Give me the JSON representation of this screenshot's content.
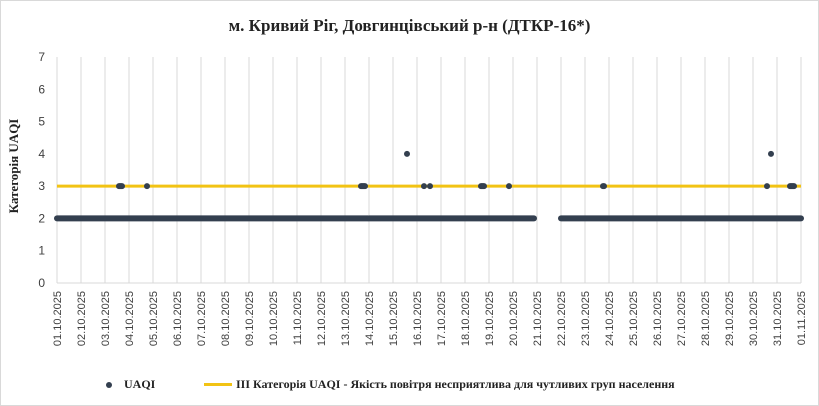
{
  "chart_data": {
    "type": "scatter",
    "title": "м. Кривий Ріг, Довгинцівський р-н (ДТКР-16*)",
    "ylabel": "Категорія UAQI",
    "xlabel": "",
    "ylim": [
      0,
      7
    ],
    "yticks": [
      "0",
      "1",
      "2",
      "3",
      "4",
      "5",
      "6",
      "7"
    ],
    "x_tick_labels": [
      "01.10.2025",
      "02.10.2025",
      "03.10.2025",
      "04.10.2025",
      "05.10.2025",
      "06.10.2025",
      "07.10.2025",
      "08.10.2025",
      "09.10.2025",
      "10.10.2025",
      "11.10.2025",
      "12.10.2025",
      "13.10.2025",
      "14.10.2025",
      "15.10.2025",
      "16.10.2025",
      "17.10.2025",
      "18.10.2025",
      "19.10.2025",
      "20.10.2025",
      "21.10.2025",
      "22.10.2025",
      "23.10.2025",
      "24.10.2025",
      "25.10.2025",
      "26.10.2025",
      "27.10.2025",
      "28.10.2025",
      "29.10.2025",
      "30.10.2025",
      "31.10.2025",
      "01.11.2025"
    ],
    "grid": "vertical",
    "legend_position": "bottom",
    "colors": {
      "uaqi": "#333f4f",
      "threshold": "#f2c314",
      "grid": "#d9d9d9"
    },
    "series": [
      {
        "name": "UAQI",
        "baseline_value": 2,
        "baseline_segments": [
          [
            "01.10.2025 00:00",
            "13.10.2025 23:00"
          ],
          [
            "14.10.2025 00:00",
            "20.10.2025 21:00"
          ],
          [
            "22.10.2025 00:00",
            "01.11.2025 00:00"
          ]
        ],
        "points": [
          {
            "x": "03.10.2025 14:00",
            "y": 3
          },
          {
            "x": "03.10.2025 15:00",
            "y": 3
          },
          {
            "x": "03.10.2025 16:00",
            "y": 3
          },
          {
            "x": "03.10.2025 17:00",
            "y": 3
          },
          {
            "x": "04.10.2025 18:00",
            "y": 3
          },
          {
            "x": "13.10.2025 16:00",
            "y": 3
          },
          {
            "x": "13.10.2025 17:00",
            "y": 3
          },
          {
            "x": "13.10.2025 18:00",
            "y": 3
          },
          {
            "x": "13.10.2025 19:00",
            "y": 3
          },
          {
            "x": "13.10.2025 20:00",
            "y": 3
          },
          {
            "x": "15.10.2025 14:00",
            "y": 4
          },
          {
            "x": "16.10.2025 07:00",
            "y": 3
          },
          {
            "x": "16.10.2025 13:00",
            "y": 3
          },
          {
            "x": "18.10.2025 16:00",
            "y": 3
          },
          {
            "x": "18.10.2025 17:00",
            "y": 3
          },
          {
            "x": "18.10.2025 18:00",
            "y": 3
          },
          {
            "x": "18.10.2025 19:00",
            "y": 3
          },
          {
            "x": "19.10.2025 20:00",
            "y": 3
          },
          {
            "x": "23.10.2025 18:00",
            "y": 3
          },
          {
            "x": "23.10.2025 19:00",
            "y": 3
          },
          {
            "x": "30.10.2025 14:00",
            "y": 3
          },
          {
            "x": "30.10.2025 18:00",
            "y": 4
          },
          {
            "x": "31.10.2025 13:00",
            "y": 3
          },
          {
            "x": "31.10.2025 14:00",
            "y": 3
          },
          {
            "x": "31.10.2025 15:00",
            "y": 3
          },
          {
            "x": "31.10.2025 16:00",
            "y": 3
          },
          {
            "x": "31.10.2025 17:00",
            "y": 3
          }
        ]
      },
      {
        "name": "ІІІ Категорія  UAQI  - Якість  повітря  несприятлива   для чутливих   груп  населення",
        "type": "line",
        "y": 3
      }
    ]
  }
}
